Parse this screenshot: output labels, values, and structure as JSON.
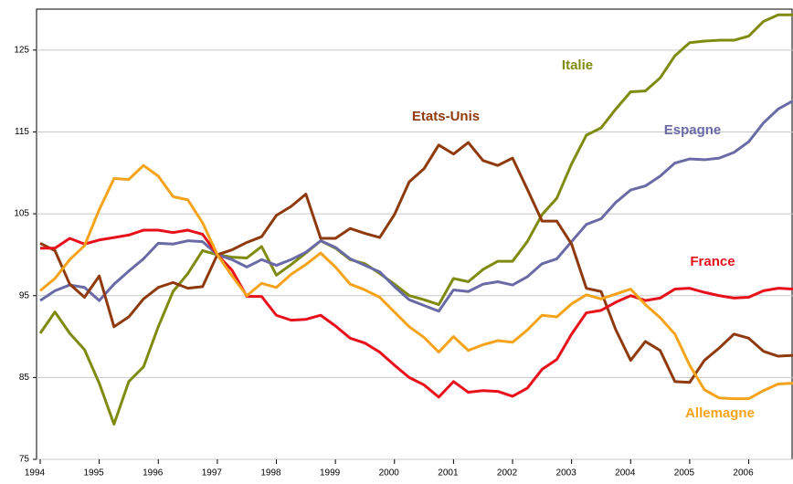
{
  "chart_data": {
    "type": "line",
    "x": [
      1994,
      1994.25,
      1994.5,
      1994.75,
      1995,
      1995.25,
      1995.5,
      1995.75,
      1996,
      1996.25,
      1996.5,
      1996.75,
      1997,
      1997.25,
      1997.5,
      1997.75,
      1998,
      1998.25,
      1998.5,
      1998.75,
      1999,
      1999.25,
      1999.5,
      1999.75,
      2000,
      2000.25,
      2000.5,
      2000.75,
      2001,
      2001.25,
      2001.5,
      2001.75,
      2002,
      2002.25,
      2002.5,
      2002.75,
      2003,
      2003.25,
      2003.5,
      2003.75,
      2004,
      2004.25,
      2004.5,
      2004.75,
      2005,
      2005.25,
      2005.5,
      2005.75,
      2006,
      2006.25,
      2006.5,
      2006.75
    ],
    "xlim": [
      1994,
      2006.75
    ],
    "xticks": [
      1994,
      1995,
      1996,
      1997,
      1998,
      1999,
      2000,
      2001,
      2002,
      2003,
      2004,
      2005,
      2006
    ],
    "ylim": [
      75,
      130
    ],
    "yticks": [
      75,
      85,
      95,
      105,
      115,
      125
    ],
    "grid": true,
    "series": [
      {
        "name": "Italie",
        "color": "#7f8b0f",
        "values": [
          90.4,
          93.0,
          90.4,
          88.4,
          84.3,
          79.3,
          84.5,
          86.3,
          91.2,
          95.5,
          97.7,
          100.5,
          100,
          99.7,
          99.6,
          101,
          97.5,
          98.8,
          100.2,
          101.7,
          100.8,
          99.4,
          98.9,
          97.7,
          96.4,
          95,
          94.5,
          93.9,
          97.1,
          96.7,
          98.2,
          99.2,
          99.2,
          101.6,
          104.9,
          106.9,
          111.1,
          114.6,
          115.5,
          117.8,
          119.9,
          120,
          121.6,
          124.3,
          125.9,
          126.1,
          126.2,
          126.2,
          126.7,
          128.5,
          129.3,
          129.3
        ]
      },
      {
        "name": "Espagne",
        "color": "#6a6aa6",
        "values": [
          94.4,
          95.6,
          96.3,
          96,
          94.4,
          96.4,
          98,
          99.5,
          101.4,
          101.3,
          101.7,
          101.6,
          100,
          99.4,
          98.5,
          99.4,
          98.7,
          99.4,
          100.3,
          101.7,
          100.9,
          99.5,
          98.7,
          97.9,
          96.1,
          94.5,
          93.8,
          93.1,
          95.7,
          95.5,
          96.4,
          96.7,
          96.3,
          97.3,
          98.9,
          99.5,
          101.6,
          103.7,
          104.4,
          106.4,
          107.9,
          108.4,
          109.6,
          111.2,
          111.7,
          111.6,
          111.8,
          112.5,
          113.8,
          116.1,
          117.8,
          118.8
        ]
      },
      {
        "name": "Etats-Unis",
        "color": "#8f3a0c",
        "values": [
          101.4,
          100.5,
          96.4,
          94.8,
          97.4,
          91.2,
          92.4,
          94.6,
          96,
          96.6,
          95.9,
          96.1,
          100,
          100.6,
          101.5,
          102.2,
          104.8,
          105.9,
          107.4,
          102,
          102,
          103.2,
          102.6,
          102.1,
          104.9,
          108.9,
          110.5,
          113.4,
          112.3,
          113.7,
          111.5,
          110.9,
          111.8,
          108,
          104.1,
          104.1,
          101.3,
          95.9,
          95.5,
          90.8,
          87.1,
          89.4,
          88.3,
          84.5,
          84.4,
          87.1,
          88.6,
          90.3,
          89.8,
          88.2,
          87.6,
          87.7
        ]
      },
      {
        "name": "France",
        "color": "#e8101a",
        "values": [
          100.8,
          100.8,
          102,
          101.3,
          101.8,
          102.1,
          102.4,
          103,
          103,
          102.7,
          103,
          102.5,
          100,
          98.1,
          94.9,
          94.9,
          92.6,
          92,
          92.1,
          92.6,
          91.3,
          89.8,
          89.2,
          88.1,
          86.5,
          85,
          84.1,
          82.6,
          84.5,
          83.2,
          83.4,
          83.3,
          82.7,
          83.7,
          86,
          87.2,
          90.3,
          92.9,
          93.2,
          94.2,
          95,
          94.4,
          94.7,
          95.8,
          95.9,
          95.4,
          95,
          94.7,
          94.8,
          95.6,
          95.9,
          95.8
        ]
      },
      {
        "name": "Allemagne",
        "color": "#f5a31a",
        "values": [
          95.6,
          97.1,
          99.4,
          101.1,
          105.5,
          109.3,
          109.2,
          110.9,
          109.6,
          107.1,
          106.7,
          103.9,
          100,
          97.4,
          95,
          96.5,
          96,
          97.6,
          98.8,
          100.2,
          98.5,
          96.4,
          95.7,
          94.8,
          93,
          91.2,
          89.9,
          88.1,
          90,
          88.3,
          89,
          89.5,
          89.3,
          90.8,
          92.6,
          92.4,
          94,
          95.1,
          94.6,
          95.2,
          95.8,
          93.9,
          92.3,
          90.3,
          86.5,
          83.5,
          82.5,
          82.4,
          82.4,
          83.4,
          84.2,
          84.3
        ]
      }
    ]
  }
}
